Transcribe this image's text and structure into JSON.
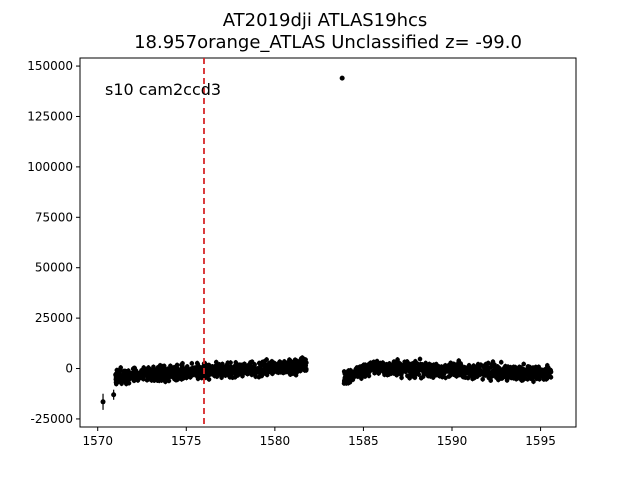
{
  "chart_data": {
    "type": "scatter",
    "title": "AT2019dji  ATLAS19hcs",
    "subtitle": "18.957orange_ATLAS Unclassified z= -99.0",
    "xlabel": "",
    "ylabel": "",
    "xlim": [
      1569,
      1597
    ],
    "ylim": [
      -29000,
      154000
    ],
    "x_ticks": [
      1570,
      1575,
      1580,
      1585,
      1590,
      1595
    ],
    "y_ticks": [
      -25000,
      0,
      25000,
      50000,
      75000,
      100000,
      125000,
      150000
    ],
    "annotation": "s10 cam2ccd3",
    "grid": false,
    "marker_color": "#000000",
    "vline": {
      "x": 1576.0,
      "color": "#d62728",
      "style": "dashed"
    },
    "outliers": [
      {
        "x": 1570.3,
        "y": -16500,
        "err": 4000
      },
      {
        "x": 1570.9,
        "y": -13000,
        "err": 2500
      },
      {
        "x": 1583.8,
        "y": 144000,
        "err": 1000
      }
    ],
    "segments": [
      {
        "x_start": 1571.0,
        "x_end": 1581.8,
        "y_start": -4000,
        "y_end": 1500,
        "scatter": 2500
      },
      {
        "x_start": 1583.9,
        "x_end": 1585.2,
        "y_start": -5500,
        "y_end": 0,
        "scatter": 2500
      },
      {
        "x_start": 1585.2,
        "x_end": 1595.6,
        "y_start": 500,
        "y_end": -2500,
        "scatter": 2500
      }
    ]
  }
}
